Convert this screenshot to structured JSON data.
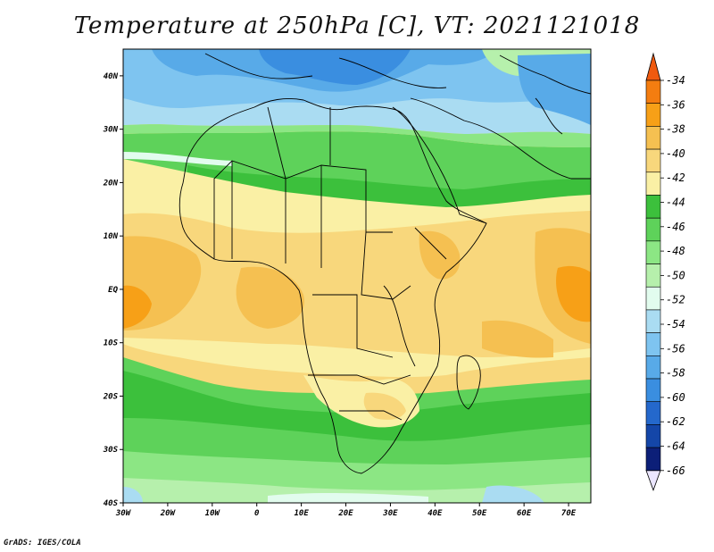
{
  "title": "Temperature at 250hPa [C], VT: 2021121018",
  "credit": "GrADS: IGES/COLA",
  "map": {
    "variable": "Temperature",
    "level": "250hPa",
    "units": "C",
    "valid_time": "2021121018",
    "lon_range": [
      -30,
      75
    ],
    "lat_range": [
      -40,
      45
    ],
    "x_ticks": [
      "30W",
      "20W",
      "10W",
      "0",
      "10E",
      "20E",
      "30E",
      "40E",
      "50E",
      "60E",
      "70E"
    ],
    "y_ticks": [
      "40N",
      "30N",
      "20N",
      "10N",
      "EQ",
      "10S",
      "20S",
      "30S",
      "40S"
    ]
  },
  "colorbar": {
    "labels": [
      "-34",
      "-36",
      "-38",
      "-40",
      "-42",
      "-44",
      "-46",
      "-48",
      "-50",
      "-52",
      "-54",
      "-56",
      "-58",
      "-60",
      "-62",
      "-64",
      "-66"
    ],
    "colors": [
      "#f05a0f",
      "#f47d10",
      "#f7a017",
      "#f5c051",
      "#f8d77c",
      "#faf0a5",
      "#3cc03c",
      "#5ed25a",
      "#8ce684",
      "#b6f0ac",
      "#e2fcee",
      "#aadcf2",
      "#7ec4f0",
      "#58aae8",
      "#3a8ee0",
      "#2468cc",
      "#1446a8",
      "#0c1f78",
      "#ebe6ff"
    ]
  }
}
